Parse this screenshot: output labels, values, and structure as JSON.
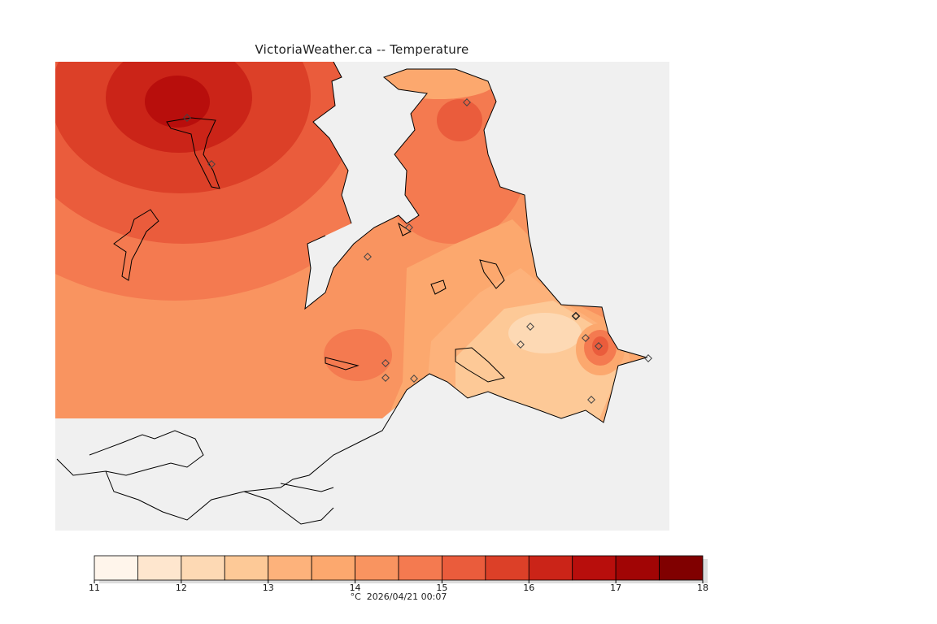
{
  "title": "VictoriaWeather.ca -- Temperature",
  "legend": {
    "unit": "°C",
    "timestamp": "2026/04/21 00:07",
    "min": 11,
    "max": 18,
    "step": 0.5,
    "tick_labels": [
      "11",
      "12",
      "13",
      "14",
      "15",
      "16",
      "17",
      "18"
    ],
    "colors": [
      "#fff5eb",
      "#fee6ce",
      "#fdd9b4",
      "#fdc997",
      "#fdb27b",
      "#fca86e",
      "#f99460",
      "#f47a50",
      "#ea5c3c",
      "#dc4028",
      "#cb2418",
      "#b80e0c",
      "#a10505",
      "#800000"
    ]
  },
  "stations": [
    {
      "id": "s1"
    },
    {
      "id": "s2"
    },
    {
      "id": "s3"
    },
    {
      "id": "s4"
    },
    {
      "id": "s5"
    },
    {
      "id": "s6"
    },
    {
      "id": "s7"
    },
    {
      "id": "s8"
    },
    {
      "id": "s9"
    },
    {
      "id": "s10"
    },
    {
      "id": "s11"
    },
    {
      "id": "s12"
    },
    {
      "id": "s13"
    },
    {
      "id": "s14"
    },
    {
      "id": "s15"
    }
  ]
}
